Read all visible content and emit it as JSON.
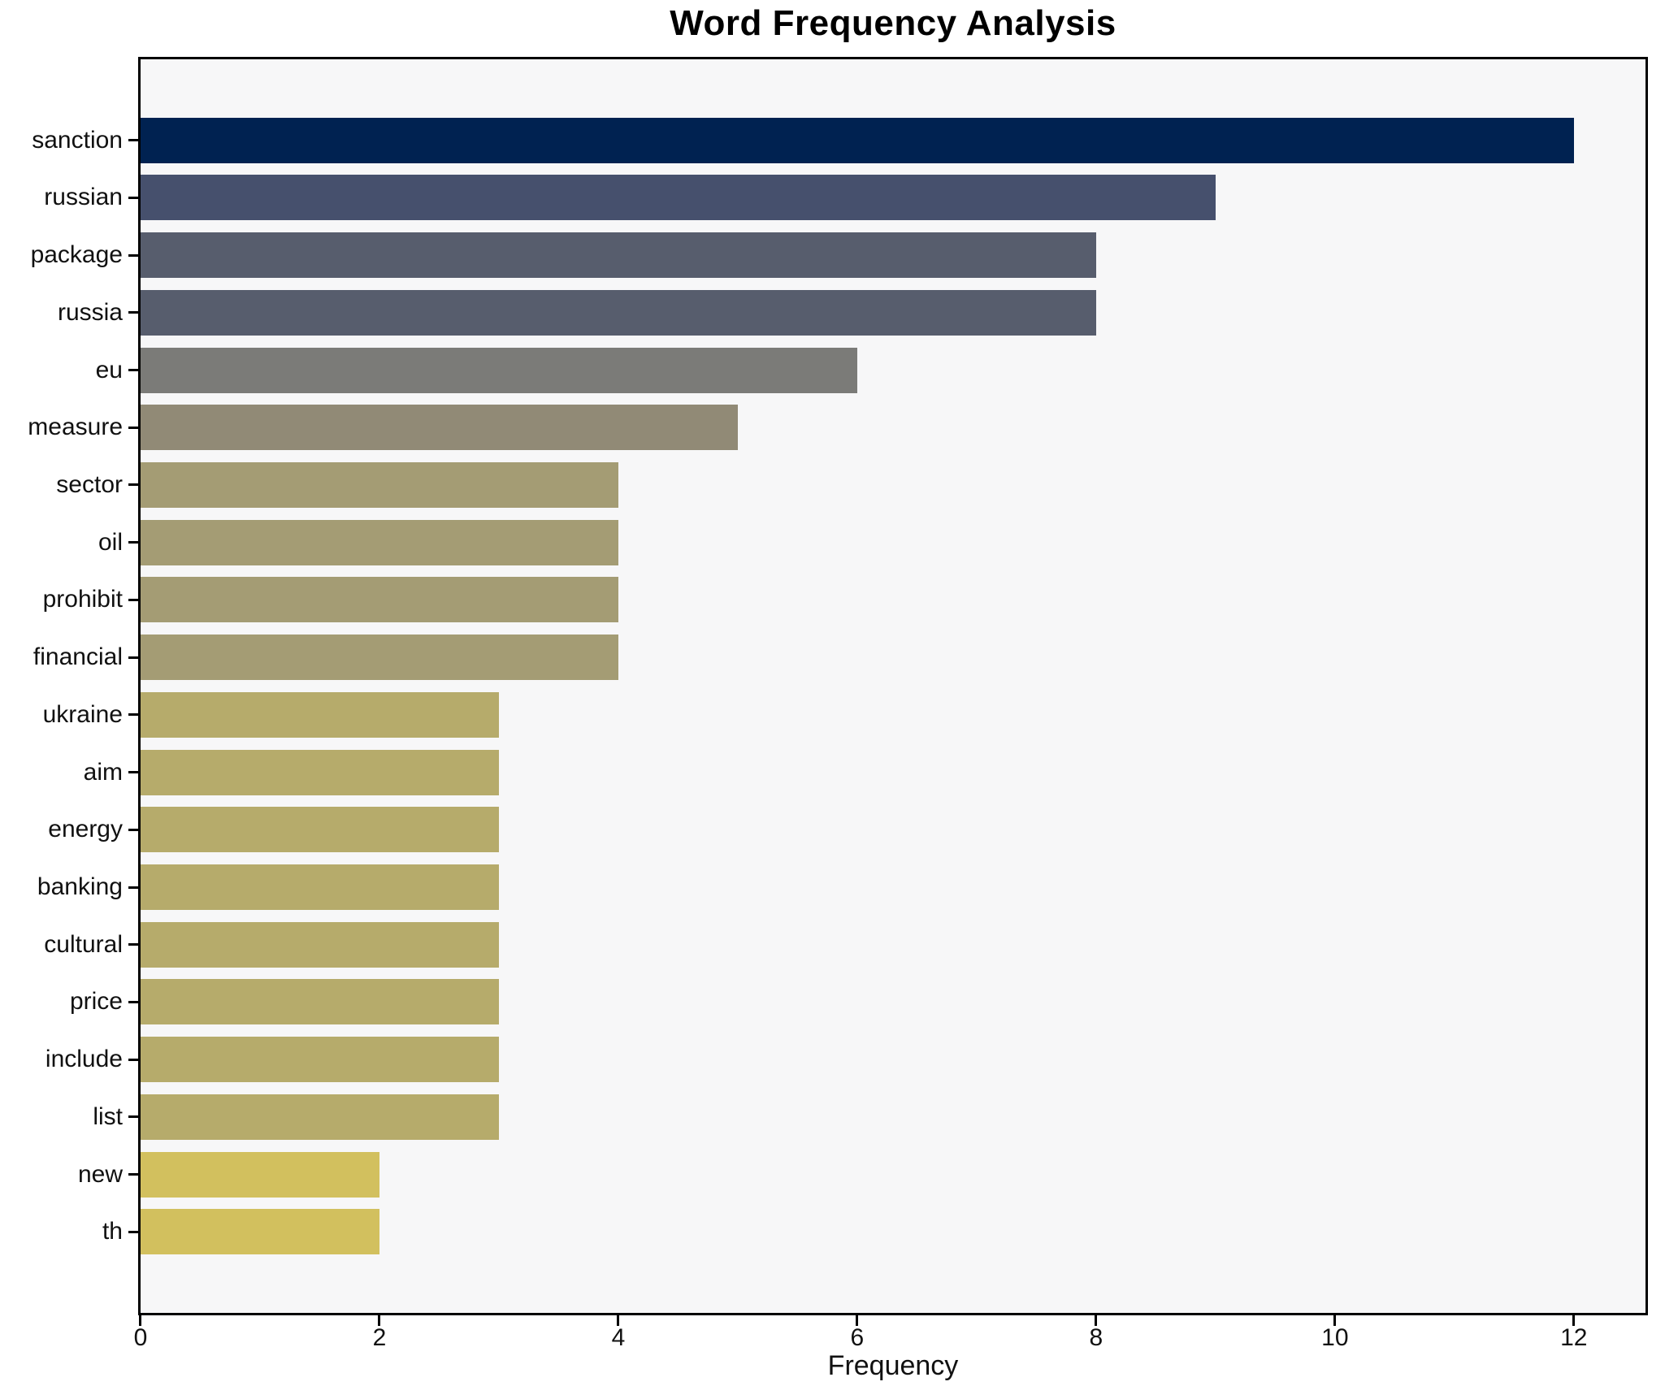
{
  "chart_data": {
    "type": "bar",
    "orientation": "horizontal",
    "title": "Word Frequency Analysis",
    "xlabel": "Frequency",
    "ylabel": "",
    "categories": [
      "sanction",
      "russian",
      "package",
      "russia",
      "eu",
      "measure",
      "sector",
      "oil",
      "prohibit",
      "financial",
      "ukraine",
      "aim",
      "energy",
      "banking",
      "cultural",
      "price",
      "include",
      "list",
      "new",
      "th"
    ],
    "values": [
      12,
      9,
      8,
      8,
      6,
      5,
      4,
      4,
      4,
      4,
      3,
      3,
      3,
      3,
      3,
      3,
      3,
      3,
      2,
      2
    ],
    "bar_colors": [
      "#002251",
      "#46506d",
      "#575d6d",
      "#575d6d",
      "#7b7b78",
      "#918a76",
      "#a49c74",
      "#a49c74",
      "#a49c74",
      "#a49c74",
      "#b6ab6b",
      "#b6ab6b",
      "#b6ab6b",
      "#b6ab6b",
      "#b6ab6b",
      "#b6ab6b",
      "#b6ab6b",
      "#b6ab6b",
      "#d2c05e",
      "#d2c05e"
    ],
    "xticks": [
      0,
      2,
      4,
      6,
      8,
      10,
      12
    ],
    "xlim": [
      0,
      12.6
    ],
    "grid": false,
    "legend": null,
    "colormap": "cividis mapped by frequency (high=dark navy, low=yellow)",
    "plot_background": "#f7f7f8",
    "figure_background": "#ffffff",
    "axis_color": "#000000",
    "tick_label_color": "#111111"
  }
}
